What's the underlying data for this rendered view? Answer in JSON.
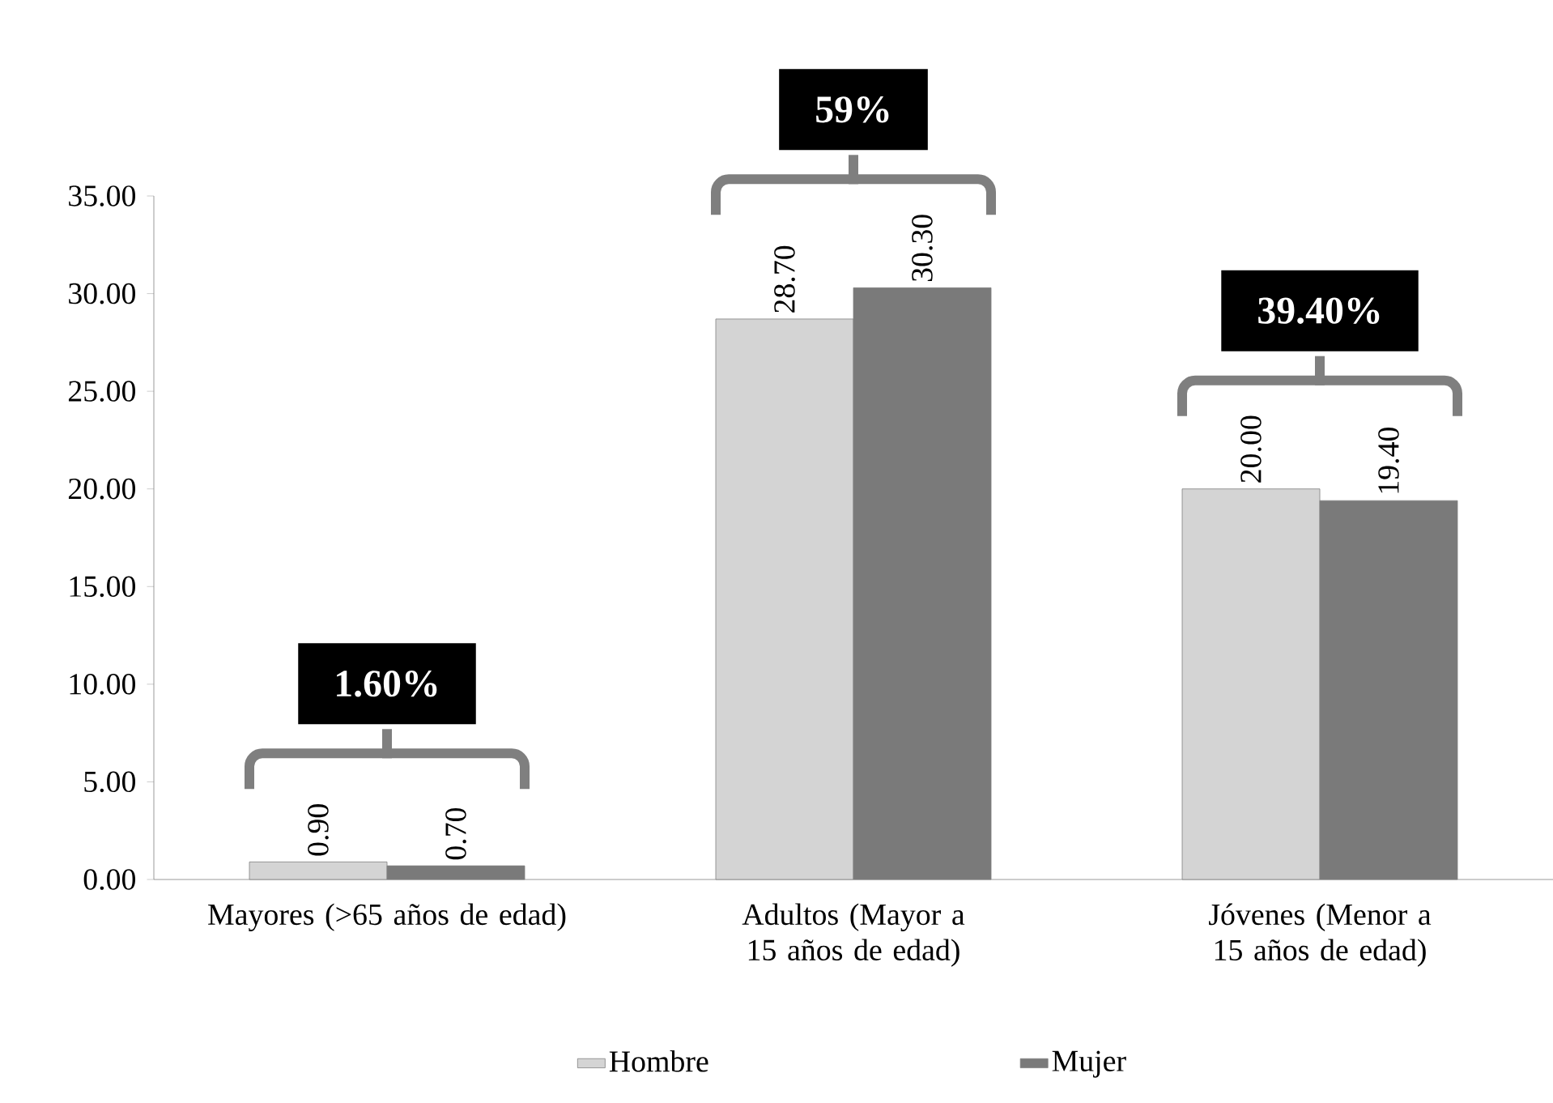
{
  "chart_data": {
    "type": "bar",
    "categories": [
      "Mayores (>65 años de edad)",
      "Adultos (Mayor a 15 años de edad)",
      "Jóvenes (Menor a 15 años de edad)"
    ],
    "series": [
      {
        "name": "Hombre",
        "color": "#d4d4d4",
        "values": [
          0.9,
          28.7,
          20.0
        ],
        "value_labels": [
          "0.90",
          "28.70",
          "20.00"
        ]
      },
      {
        "name": "Mujer",
        "color": "#7a7a7a",
        "values": [
          0.7,
          30.3,
          19.4
        ],
        "value_labels": [
          "0.70",
          "30.30",
          "19.40"
        ]
      }
    ],
    "ylim": [
      0,
      35
    ],
    "yticks": [
      {
        "value": 0,
        "label": "0.00"
      },
      {
        "value": 5,
        "label": "5.00"
      },
      {
        "value": 10,
        "label": "10.00"
      },
      {
        "value": 15,
        "label": "15.00"
      },
      {
        "value": 20,
        "label": "20.00"
      },
      {
        "value": 25,
        "label": "25.00"
      },
      {
        "value": 30,
        "label": "30.00"
      },
      {
        "value": 35,
        "label": "35.00"
      }
    ],
    "annotations": [
      "1.60%",
      "59%",
      "39.40%"
    ],
    "legend": "bottom"
  }
}
